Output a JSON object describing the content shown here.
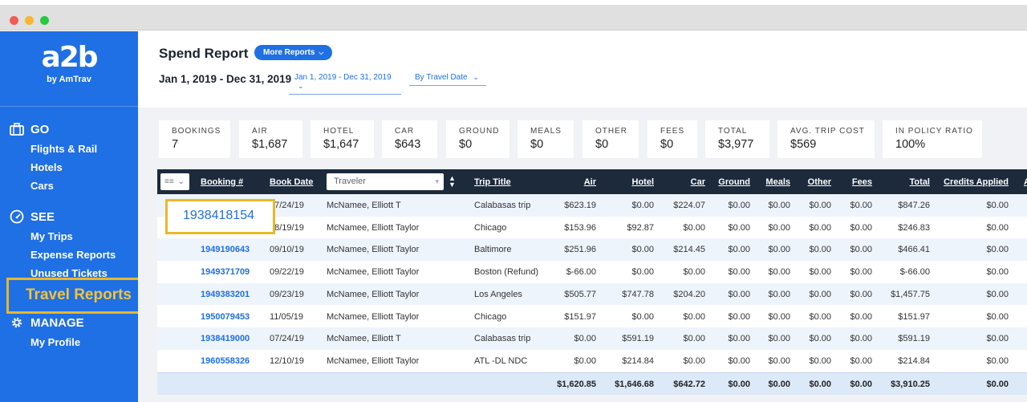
{
  "window": {
    "controls": [
      "close",
      "minimize",
      "zoom"
    ]
  },
  "sidebar": {
    "logo": {
      "mark": "a2b",
      "sub": "by AmTrav"
    },
    "sections": {
      "go": {
        "title": "GO",
        "icon": "briefcase-icon",
        "items": [
          "Flights & Rail",
          "Hotels",
          "Cars"
        ]
      },
      "see": {
        "title": "SEE",
        "icon": "gauge-icon",
        "items": [
          "My Trips",
          "Expense Reports",
          "Unused Tickets"
        ]
      },
      "manage": {
        "title": "MANAGE",
        "icon": "gear-icon",
        "items": [
          "My Profile"
        ]
      }
    },
    "highlight_label": "Travel Reports",
    "highlight_color": "#e8b82a"
  },
  "header": {
    "title": "Spend Report",
    "more_reports": "More Reports",
    "date_range": "Jan 1, 2019 - Dec 31, 2019",
    "date_select": "Jan 1, 2019 - Dec 31, 2019",
    "date_mode": "By Travel Date"
  },
  "stats": [
    {
      "label": "BOOKINGS",
      "value": "7"
    },
    {
      "label": "AIR",
      "value": "$1,687"
    },
    {
      "label": "HOTEL",
      "value": "$1,647"
    },
    {
      "label": "CAR",
      "value": "$643"
    },
    {
      "label": "GROUND",
      "value": "$0"
    },
    {
      "label": "MEALS",
      "value": "$0"
    },
    {
      "label": "OTHER",
      "value": "$0"
    },
    {
      "label": "FEES",
      "value": "$0"
    },
    {
      "label": "TOTAL",
      "value": "$3,977"
    },
    {
      "label": "AVG. TRIP COST",
      "value": "$569"
    },
    {
      "label": "IN POLICY RATIO",
      "value": "100%"
    }
  ],
  "table": {
    "headers": {
      "booking": "Booking #",
      "book_date": "Book Date",
      "traveler_placeholder": "Traveler",
      "trip_title": "Trip Title",
      "air": "Air",
      "hotel": "Hotel",
      "car": "Car",
      "ground": "Ground",
      "meals": "Meals",
      "other": "Other",
      "fees": "Fees",
      "total": "Total",
      "credits": "Credits Applied",
      "overflow": "A"
    },
    "rows": [
      [
        "1938418154",
        "07/24/19",
        "McNamee, Elliott T",
        "Calabasas trip",
        "$623.19",
        "$0.00",
        "$224.07",
        "$0.00",
        "$0.00",
        "$0.00",
        "$0.00",
        "$847.26",
        "$0.00"
      ],
      [
        "1938418154",
        "08/19/19",
        "McNamee, Elliott Taylor",
        "Chicago",
        "$153.96",
        "$92.87",
        "$0.00",
        "$0.00",
        "$0.00",
        "$0.00",
        "$0.00",
        "$246.83",
        "$0.00"
      ],
      [
        "1949190643",
        "09/10/19",
        "McNamee, Elliott Taylor",
        "Baltimore",
        "$251.96",
        "$0.00",
        "$214.45",
        "$0.00",
        "$0.00",
        "$0.00",
        "$0.00",
        "$466.41",
        "$0.00"
      ],
      [
        "1949371709",
        "09/22/19",
        "McNamee, Elliott Taylor",
        "Boston (Refund)",
        "$-66.00",
        "$0.00",
        "$0.00",
        "$0.00",
        "$0.00",
        "$0.00",
        "$0.00",
        "$-66.00",
        "$0.00"
      ],
      [
        "1949383201",
        "09/23/19",
        "McNamee, Elliott Taylor",
        "Los Angeles",
        "$505.77",
        "$747.78",
        "$204.20",
        "$0.00",
        "$0.00",
        "$0.00",
        "$0.00",
        "$1,457.75",
        "$0.00"
      ],
      [
        "1950079453",
        "11/05/19",
        "McNamee, Elliott Taylor",
        "Chicago",
        "$151.97",
        "$0.00",
        "$0.00",
        "$0.00",
        "$0.00",
        "$0.00",
        "$0.00",
        "$151.97",
        "$0.00"
      ],
      [
        "1938419000",
        "07/24/19",
        "McNamee, Elliott T",
        "Calabasas trip",
        "$0.00",
        "$591.19",
        "$0.00",
        "$0.00",
        "$0.00",
        "$0.00",
        "$0.00",
        "$591.19",
        "$0.00"
      ],
      [
        "1960558326",
        "12/10/19",
        "McNamee, Elliott Taylor",
        "ATL -DL NDC",
        "$0.00",
        "$214.84",
        "$0.00",
        "$0.00",
        "$0.00",
        "$0.00",
        "$0.00",
        "$214.84",
        "$0.00"
      ]
    ],
    "totals": [
      "$1,620.85",
      "$1,646.68",
      "$642.72",
      "$0.00",
      "$0.00",
      "$0.00",
      "$0.00",
      "$3,910.25",
      "$0.00"
    ]
  },
  "booking_highlight": "1938418154",
  "colors": {
    "brand": "#1f6fe5",
    "header_dark": "#1c2a3c",
    "highlight": "#e8b82a"
  }
}
